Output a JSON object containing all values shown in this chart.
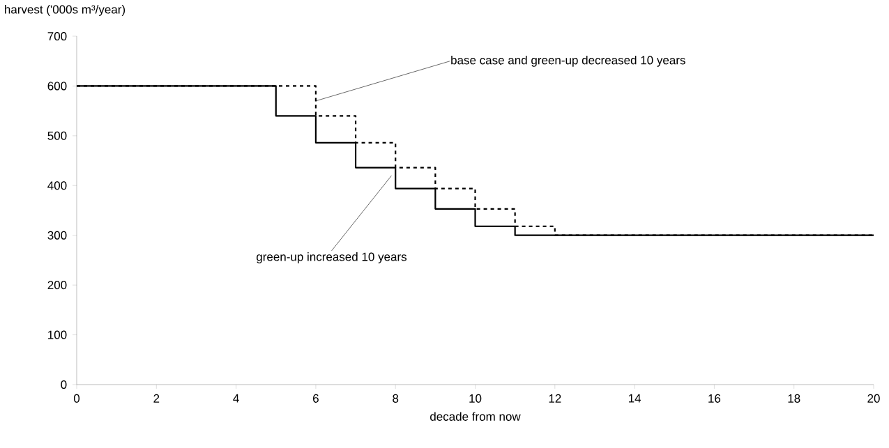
{
  "chart_data": {
    "type": "step",
    "xlabel": "decade from now",
    "ylabel": "harvest ('000s m³/year)",
    "xlim": [
      0,
      20
    ],
    "xticks": [
      0,
      2,
      4,
      6,
      8,
      10,
      12,
      14,
      16,
      18,
      20
    ],
    "ylim": [
      0,
      700
    ],
    "yticks": [
      0,
      100,
      200,
      300,
      400,
      500,
      600,
      700
    ],
    "series": [
      {
        "color": "#000000",
        "line_style": "solid",
        "x": [
          0,
          5,
          6,
          7,
          8,
          9,
          10,
          11,
          20
        ],
        "values": [
          600,
          540,
          486,
          436,
          394,
          353,
          318,
          300,
          300
        ]
      },
      {
        "color": "#000000",
        "line_style": "dashed",
        "x": [
          0,
          6,
          7,
          8,
          9,
          10,
          11,
          12,
          20
        ],
        "values": [
          600,
          540,
          486,
          436,
          394,
          353,
          318,
          300,
          300
        ]
      }
    ],
    "annotations": [
      {
        "text": "base case and green-up decreased 10 years",
        "x": 6,
        "y": 570
      },
      {
        "text": "green-up increased 10 years",
        "x": 7.9,
        "y": 420
      }
    ]
  }
}
